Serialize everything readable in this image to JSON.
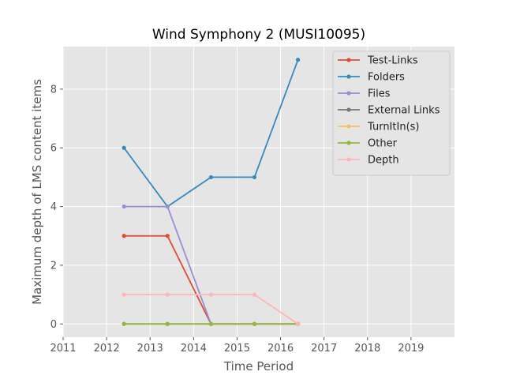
{
  "chart_data": {
    "type": "line",
    "title": "Wind Symphony 2 (MUSI10095)",
    "xlabel": "Time Period",
    "ylabel": "Maximum depth of LMS content items",
    "xlim": [
      2011,
      2020
    ],
    "ylim": [
      -0.45,
      9.45
    ],
    "xticks": [
      2011,
      2012,
      2013,
      2014,
      2015,
      2016,
      2017,
      2018,
      2019
    ],
    "yticks": [
      0,
      2,
      4,
      6,
      8
    ],
    "grid": true,
    "legend_position": "top-right",
    "x": [
      2012.4,
      2013.4,
      2014.4,
      2015.4,
      2016.4
    ],
    "series": [
      {
        "name": "Test-Links",
        "color": "#E24A33",
        "values": [
          3,
          3,
          0,
          0,
          0
        ]
      },
      {
        "name": "Folders",
        "color": "#348ABD",
        "values": [
          6,
          4,
          5,
          5,
          9
        ]
      },
      {
        "name": "Files",
        "color": "#988ED5",
        "values": [
          4,
          4,
          0,
          0,
          0
        ]
      },
      {
        "name": "External Links",
        "color": "#777777",
        "values": [
          0,
          0,
          0,
          0,
          0
        ]
      },
      {
        "name": "TurnItIn(s)",
        "color": "#FBC15E",
        "values": [
          0,
          0,
          0,
          0,
          0
        ]
      },
      {
        "name": "Other",
        "color": "#8EBA42",
        "values": [
          0,
          0,
          0,
          0,
          0
        ]
      },
      {
        "name": "Depth",
        "color": "#FFB5B8",
        "values": [
          1,
          1,
          1,
          1,
          0
        ]
      }
    ]
  }
}
